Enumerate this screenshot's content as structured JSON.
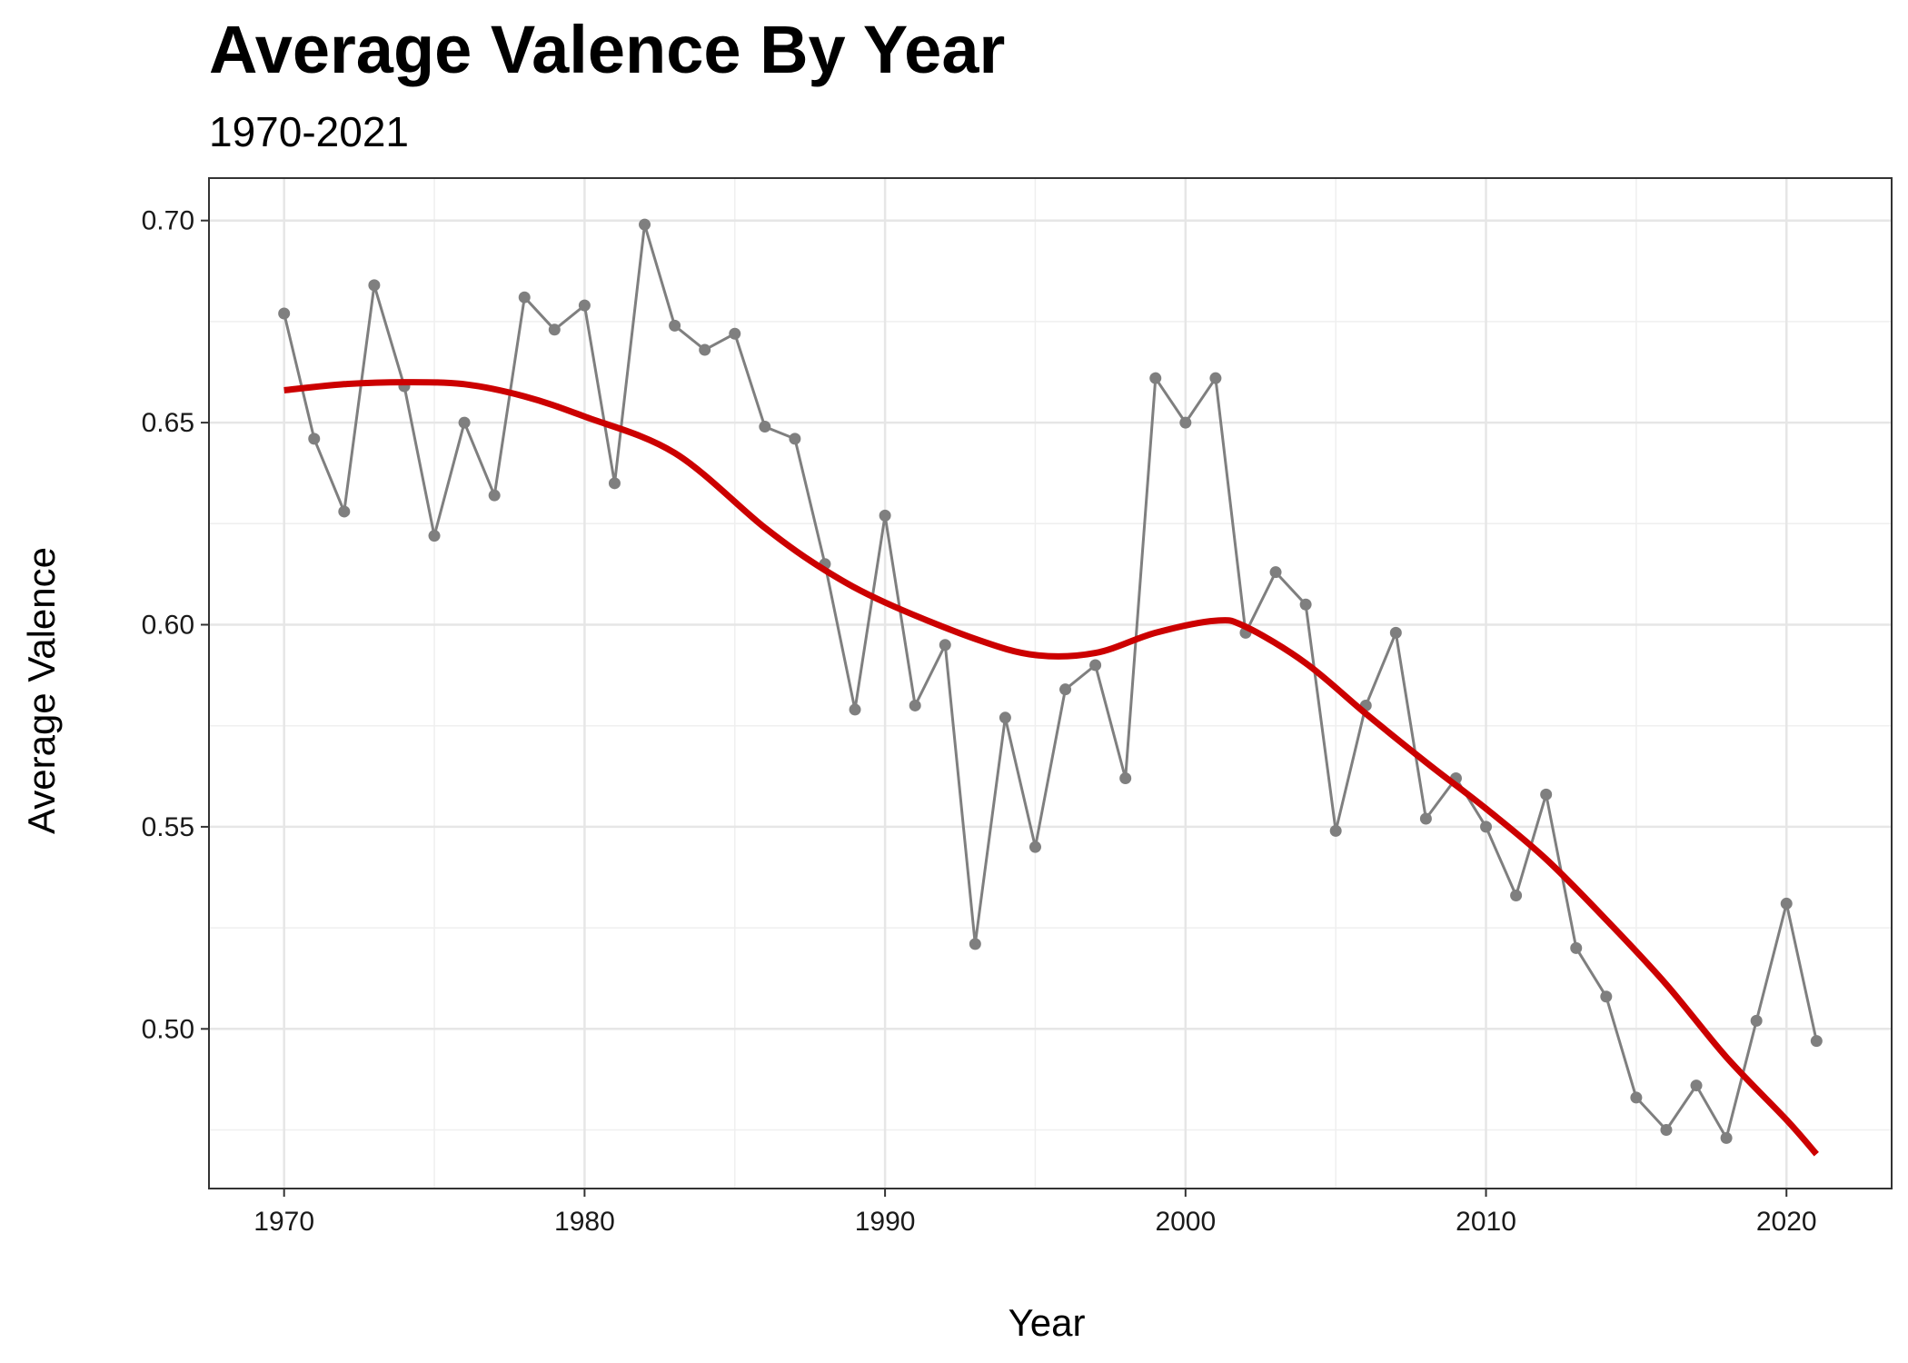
{
  "chart_data": {
    "type": "line",
    "title": "Average Valence By Year",
    "subtitle": "1970-2021",
    "xlabel": "Year",
    "ylabel": "Average Valence",
    "xlim": [
      1967.5,
      2023.5
    ],
    "ylim": [
      0.4605,
      0.7105
    ],
    "x_ticks": [
      1970,
      1980,
      1990,
      2000,
      2010,
      2020
    ],
    "x_tick_labels": [
      "1970",
      "1980",
      "1990",
      "2000",
      "2010",
      "2020"
    ],
    "y_ticks": [
      0.5,
      0.55,
      0.6,
      0.65,
      0.7
    ],
    "y_tick_labels": [
      "0.50",
      "0.55",
      "0.60",
      "0.65",
      "0.70"
    ],
    "grid": true,
    "legend": "none",
    "series": [
      {
        "type": "line+points",
        "color": "#7f7f7f",
        "x": [
          1970,
          1971,
          1972,
          1973,
          1974,
          1975,
          1976,
          1977,
          1978,
          1979,
          1980,
          1981,
          1982,
          1983,
          1984,
          1985,
          1986,
          1987,
          1988,
          1989,
          1990,
          1991,
          1992,
          1993,
          1994,
          1995,
          1996,
          1997,
          1998,
          1999,
          2000,
          2001,
          2002,
          2003,
          2004,
          2005,
          2006,
          2007,
          2008,
          2009,
          2010,
          2011,
          2012,
          2013,
          2014,
          2015,
          2016,
          2017,
          2018,
          2019,
          2020,
          2021
        ],
        "y": [
          0.677,
          0.646,
          0.628,
          0.684,
          0.659,
          0.622,
          0.65,
          0.632,
          0.681,
          0.673,
          0.679,
          0.635,
          0.699,
          0.674,
          0.668,
          0.672,
          0.649,
          0.646,
          0.615,
          0.579,
          0.627,
          0.58,
          0.595,
          0.521,
          0.577,
          0.545,
          0.584,
          0.59,
          0.562,
          0.661,
          0.65,
          0.661,
          0.598,
          0.613,
          0.605,
          0.549,
          0.58,
          0.598,
          0.552,
          0.562,
          0.55,
          0.533,
          0.558,
          0.52,
          0.508,
          0.483,
          0.475,
          0.486,
          0.473,
          0.502,
          0.531,
          0.497
        ]
      },
      {
        "type": "smooth",
        "color": "#cc0000",
        "x": [
          1970,
          1972,
          1974,
          1976,
          1978,
          1980,
          1983,
          1986,
          1988,
          1990,
          1993,
          1995,
          1997,
          1999,
          2001,
          2002,
          2004,
          2006,
          2008,
          2010,
          2012,
          2014,
          2016,
          2018,
          2020,
          2021
        ],
        "y": [
          0.658,
          0.6595,
          0.66,
          0.6595,
          0.6565,
          0.6515,
          0.6425,
          0.624,
          0.6135,
          0.6055,
          0.5965,
          0.5925,
          0.593,
          0.598,
          0.601,
          0.5995,
          0.5905,
          0.578,
          0.566,
          0.5545,
          0.542,
          0.527,
          0.511,
          0.493,
          0.4775,
          0.469
        ]
      }
    ]
  }
}
